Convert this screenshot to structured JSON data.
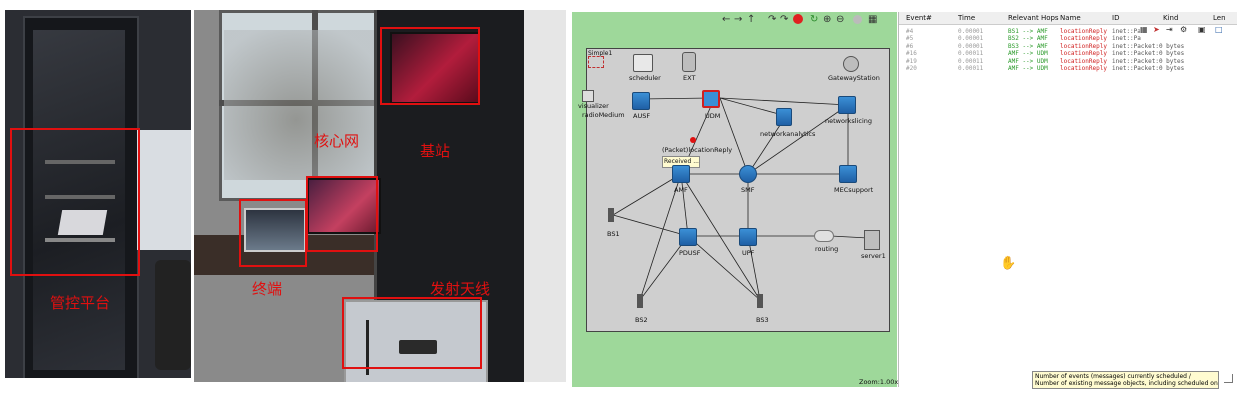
{
  "left_photo": {
    "labels": {
      "monitor_platform": "管控平台"
    }
  },
  "mid_photo": {
    "labels": {
      "core_network": "核心网",
      "base_station": "基站",
      "terminal": "终端",
      "antenna": "发射天线"
    }
  },
  "simulator": {
    "zoom": "Zoom:1.00x",
    "canvas_title": "Simple1",
    "nodes": {
      "scheduler": "scheduler",
      "ext": "EXT",
      "gateway": "GatewayStation",
      "visualizer": "visualizer",
      "radio": "radioMedium",
      "ausf": "AUSF",
      "udm": "UDM",
      "netanalytics": "networkanalytics",
      "netslicing": "networkslicing",
      "amf": "AMF",
      "smf": "SMF",
      "mec": "MECsupport",
      "bs1": "BS1",
      "pdusf": "PDUSF",
      "upf": "UPF",
      "routing": "routing",
      "server": "server1",
      "bs2": "BS2",
      "bs3": "BS3"
    },
    "message_label": "(Packet)locationReply",
    "tooltip": "Received ..."
  },
  "event_log": {
    "columns": [
      "Event#",
      "Time",
      "Relevant Hops",
      "Name",
      "ID",
      "Kind",
      "Len"
    ],
    "rows": [
      {
        "event": "#4",
        "time": "0.00001",
        "hops": "BS1 --> AMF",
        "name": "locationReply",
        "id": "inet::Pa"
      },
      {
        "event": "#5",
        "time": "0.00001",
        "hops": "BS2 --> AMF",
        "name": "locationReply",
        "id": "inet::Pa"
      },
      {
        "event": "#6",
        "time": "0.00001",
        "hops": "BS3 --> AMF",
        "name": "locationReply",
        "id": "inet::Packet:0 bytes"
      },
      {
        "event": "#16",
        "time": "0.00011",
        "hops": "AMF --> UDM",
        "name": "locationReply",
        "id": "inet::Packet:0 bytes"
      },
      {
        "event": "#19",
        "time": "0.00011",
        "hops": "AMF --> UDM",
        "name": "locationReply",
        "id": "inet::Packet:0 bytes"
      },
      {
        "event": "#20",
        "time": "0.00011",
        "hops": "AMF --> UDM",
        "name": "locationReply",
        "id": "inet::Packet:0 bytes"
      }
    ],
    "status_tooltip_line1": "Number of events (messages) currently scheduled /",
    "status_tooltip_line2": "Number of existing message objects, including scheduled ones ("
  }
}
